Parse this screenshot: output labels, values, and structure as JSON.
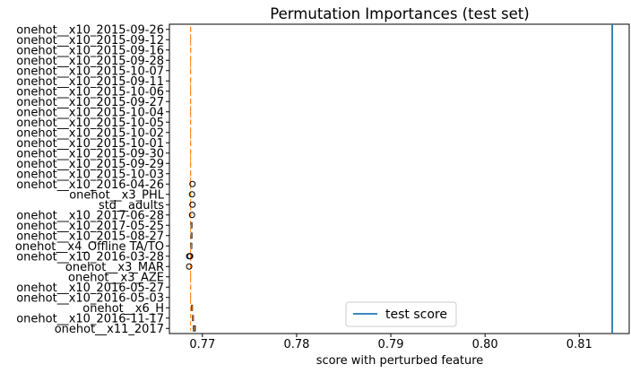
{
  "chart_data": {
    "type": "boxplot",
    "title": "Permutation Importances (test set)",
    "xlabel": "score with perturbed feature",
    "ylabel": "",
    "xlim": [
      0.7665,
      0.8153
    ],
    "xticks": [
      0.77,
      0.78,
      0.79,
      0.8,
      0.81
    ],
    "xtick_labels": [
      "0.77",
      "0.78",
      "0.79",
      "0.80",
      "0.81"
    ],
    "baseline_x": 0.76875,
    "features": [
      {
        "label": "onehot__x10_2015-09-26",
        "median": 0.76875,
        "q1": 0.76875,
        "q3": 0.76875,
        "whislo": 0.76875,
        "whishi": 0.76875,
        "fliers": []
      },
      {
        "label": "onehot__x10_2015-09-12",
        "median": 0.76875,
        "q1": 0.76875,
        "q3": 0.76875,
        "whislo": 0.76875,
        "whishi": 0.76875,
        "fliers": []
      },
      {
        "label": "onehot__x10_2015-09-16",
        "median": 0.76875,
        "q1": 0.76875,
        "q3": 0.76875,
        "whislo": 0.76875,
        "whishi": 0.76875,
        "fliers": []
      },
      {
        "label": "onehot__x10_2015-09-28",
        "median": 0.76875,
        "q1": 0.76875,
        "q3": 0.76875,
        "whislo": 0.76875,
        "whishi": 0.76875,
        "fliers": []
      },
      {
        "label": "onehot__x10_2015-10-07",
        "median": 0.76875,
        "q1": 0.76875,
        "q3": 0.76875,
        "whislo": 0.76875,
        "whishi": 0.76875,
        "fliers": []
      },
      {
        "label": "onehot__x10_2015-09-11",
        "median": 0.76875,
        "q1": 0.76875,
        "q3": 0.76875,
        "whislo": 0.76875,
        "whishi": 0.76875,
        "fliers": []
      },
      {
        "label": "onehot__x10_2015-10-06",
        "median": 0.76875,
        "q1": 0.76875,
        "q3": 0.76875,
        "whislo": 0.76875,
        "whishi": 0.76875,
        "fliers": []
      },
      {
        "label": "onehot__x10_2015-09-27",
        "median": 0.76875,
        "q1": 0.76875,
        "q3": 0.76875,
        "whislo": 0.76875,
        "whishi": 0.76875,
        "fliers": []
      },
      {
        "label": "onehot__x10_2015-10-04",
        "median": 0.76875,
        "q1": 0.76875,
        "q3": 0.76875,
        "whislo": 0.76875,
        "whishi": 0.76875,
        "fliers": []
      },
      {
        "label": "onehot__x10_2015-10-05",
        "median": 0.76875,
        "q1": 0.76875,
        "q3": 0.76875,
        "whislo": 0.76875,
        "whishi": 0.76875,
        "fliers": []
      },
      {
        "label": "onehot__x10_2015-10-02",
        "median": 0.76875,
        "q1": 0.76875,
        "q3": 0.76875,
        "whislo": 0.76875,
        "whishi": 0.76875,
        "fliers": []
      },
      {
        "label": "onehot__x10_2015-10-01",
        "median": 0.76875,
        "q1": 0.76875,
        "q3": 0.76875,
        "whislo": 0.76875,
        "whishi": 0.76875,
        "fliers": []
      },
      {
        "label": "onehot__x10_2015-09-30",
        "median": 0.76875,
        "q1": 0.76875,
        "q3": 0.76875,
        "whislo": 0.76875,
        "whishi": 0.76875,
        "fliers": []
      },
      {
        "label": "onehot__x10_2015-09-29",
        "median": 0.76875,
        "q1": 0.76875,
        "q3": 0.76875,
        "whislo": 0.76875,
        "whishi": 0.76875,
        "fliers": []
      },
      {
        "label": "onehot__x10_2015-10-03",
        "median": 0.76875,
        "q1": 0.76875,
        "q3": 0.76875,
        "whislo": 0.76875,
        "whishi": 0.76875,
        "fliers": []
      },
      {
        "label": "onehot__x10_2016-04-26",
        "median": 0.76875,
        "q1": 0.76875,
        "q3": 0.76875,
        "whislo": 0.76875,
        "whishi": 0.76875,
        "fliers": [
          0.76895
        ]
      },
      {
        "label": "onehot__x3_PHL",
        "median": 0.76875,
        "q1": 0.76875,
        "q3": 0.76875,
        "whislo": 0.76875,
        "whishi": 0.76875,
        "fliers": [
          0.7689
        ]
      },
      {
        "label": "std__adults",
        "median": 0.76875,
        "q1": 0.76875,
        "q3": 0.76875,
        "whislo": 0.76875,
        "whishi": 0.76875,
        "fliers": [
          0.76895
        ]
      },
      {
        "label": "onehot__x10_2017-06-28",
        "median": 0.76875,
        "q1": 0.76875,
        "q3": 0.76875,
        "whislo": 0.76875,
        "whishi": 0.76875,
        "fliers": [
          0.7689
        ]
      },
      {
        "label": "onehot__x10_2017-05-25",
        "median": 0.76885,
        "q1": 0.7688,
        "q3": 0.7689,
        "whislo": 0.76878,
        "whishi": 0.76892,
        "fliers": []
      },
      {
        "label": "onehot__x10_2015-08-27",
        "median": 0.76885,
        "q1": 0.7688,
        "q3": 0.7689,
        "whislo": 0.76878,
        "whishi": 0.76892,
        "fliers": []
      },
      {
        "label": "onehot__x4_Offline TA/TO",
        "median": 0.76882,
        "q1": 0.76878,
        "q3": 0.76886,
        "whislo": 0.76876,
        "whishi": 0.76888,
        "fliers": []
      },
      {
        "label": "onehot__x10_2016-03-28",
        "median": 0.76875,
        "q1": 0.76875,
        "q3": 0.76875,
        "whislo": 0.76875,
        "whishi": 0.76875,
        "fliers": [
          0.7686,
          0.7687
        ]
      },
      {
        "label": "onehot__x3_MAR",
        "median": 0.76875,
        "q1": 0.76875,
        "q3": 0.76875,
        "whislo": 0.76875,
        "whishi": 0.76875,
        "fliers": [
          0.7686
        ]
      },
      {
        "label": "onehot__x3_AZE",
        "median": 0.76875,
        "q1": 0.76875,
        "q3": 0.76875,
        "whislo": 0.76875,
        "whishi": 0.76875,
        "fliers": []
      },
      {
        "label": "onehot__x10_2016-05-27",
        "median": 0.76875,
        "q1": 0.76875,
        "q3": 0.76875,
        "whislo": 0.76875,
        "whishi": 0.76875,
        "fliers": []
      },
      {
        "label": "onehot__x10_2016-05-03",
        "median": 0.76875,
        "q1": 0.76875,
        "q3": 0.76875,
        "whislo": 0.76875,
        "whishi": 0.76875,
        "fliers": []
      },
      {
        "label": "onehot__x6_H",
        "median": 0.7689,
        "q1": 0.76885,
        "q3": 0.76895,
        "whislo": 0.76883,
        "whishi": 0.76897,
        "fliers": []
      },
      {
        "label": "onehot__x10_2016-11-17",
        "median": 0.769,
        "q1": 0.76895,
        "q3": 0.76905,
        "whislo": 0.76893,
        "whishi": 0.76907,
        "fliers": []
      },
      {
        "label": "onehot__x11_2017",
        "median": 0.76915,
        "q1": 0.76905,
        "q3": 0.76925,
        "whislo": 0.769,
        "whishi": 0.7693,
        "fliers": []
      }
    ],
    "test_score": 0.8135,
    "legend": [
      {
        "label": "test score",
        "color": "#1f77b4"
      }
    ],
    "legend_position": "lower-center",
    "colors": {
      "median": "#ff7f0e",
      "test_score": "#1f77b4",
      "box": "#000000",
      "flier": "#000000"
    }
  }
}
